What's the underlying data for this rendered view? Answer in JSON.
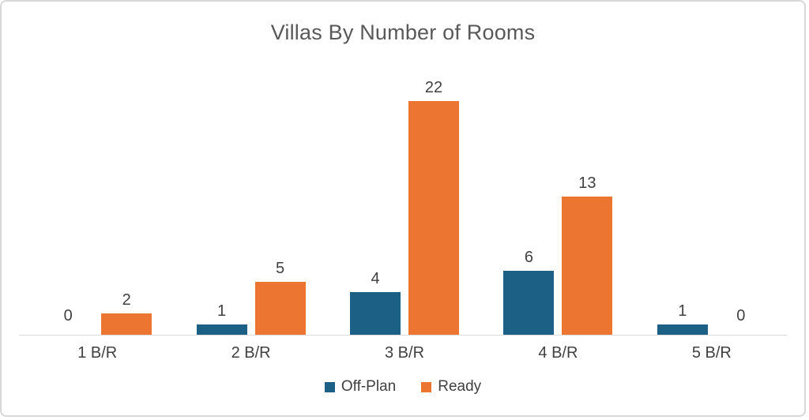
{
  "chart_data": {
    "type": "bar",
    "title": "Villas By Number of Rooms",
    "categories": [
      "1 B/R",
      "2 B/R",
      "3 B/R",
      "4 B/R",
      "5 B/R"
    ],
    "series": [
      {
        "name": "Off-Plan",
        "color": "#1c6185",
        "values": [
          0,
          1,
          4,
          6,
          1
        ]
      },
      {
        "name": "Ready",
        "color": "#ec7532",
        "values": [
          2,
          5,
          22,
          13,
          0
        ]
      }
    ],
    "value_labels_shown": true,
    "xlabel": "",
    "ylabel": "",
    "ylim": [
      0,
      25
    ],
    "grid": false,
    "legend_position": "bottom",
    "colors": {
      "title_text": "#595959",
      "label_text": "#404040",
      "axis_line": "#d9d9d9",
      "card_border": "#d8d8d8",
      "background": "#ffffff"
    }
  }
}
